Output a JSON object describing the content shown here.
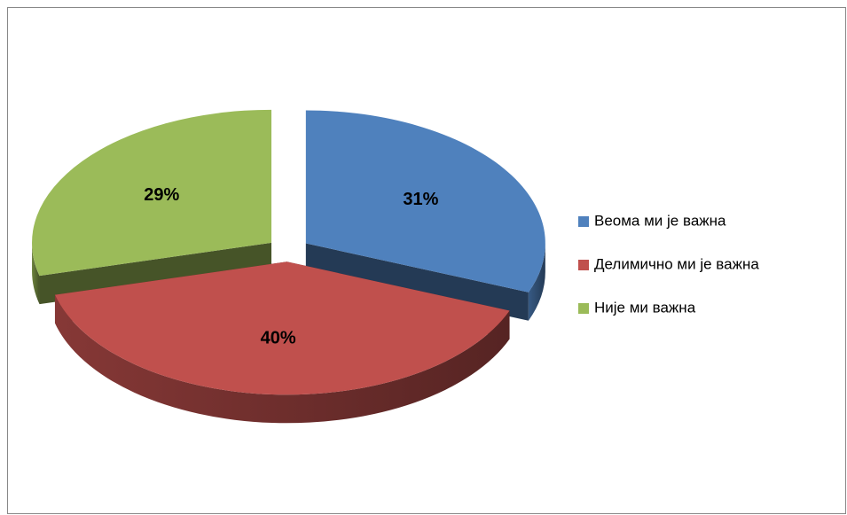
{
  "chart_data": {
    "type": "pie3d",
    "categories": [
      "Веома ми је важна",
      "Делимично ми је важна",
      "Није ми важна"
    ],
    "values": [
      31,
      40,
      29
    ],
    "value_labels": [
      "31%",
      "40%",
      "29%"
    ],
    "colors": [
      "#4f81bd",
      "#c0504d",
      "#9bbb59"
    ],
    "legend": "right"
  }
}
